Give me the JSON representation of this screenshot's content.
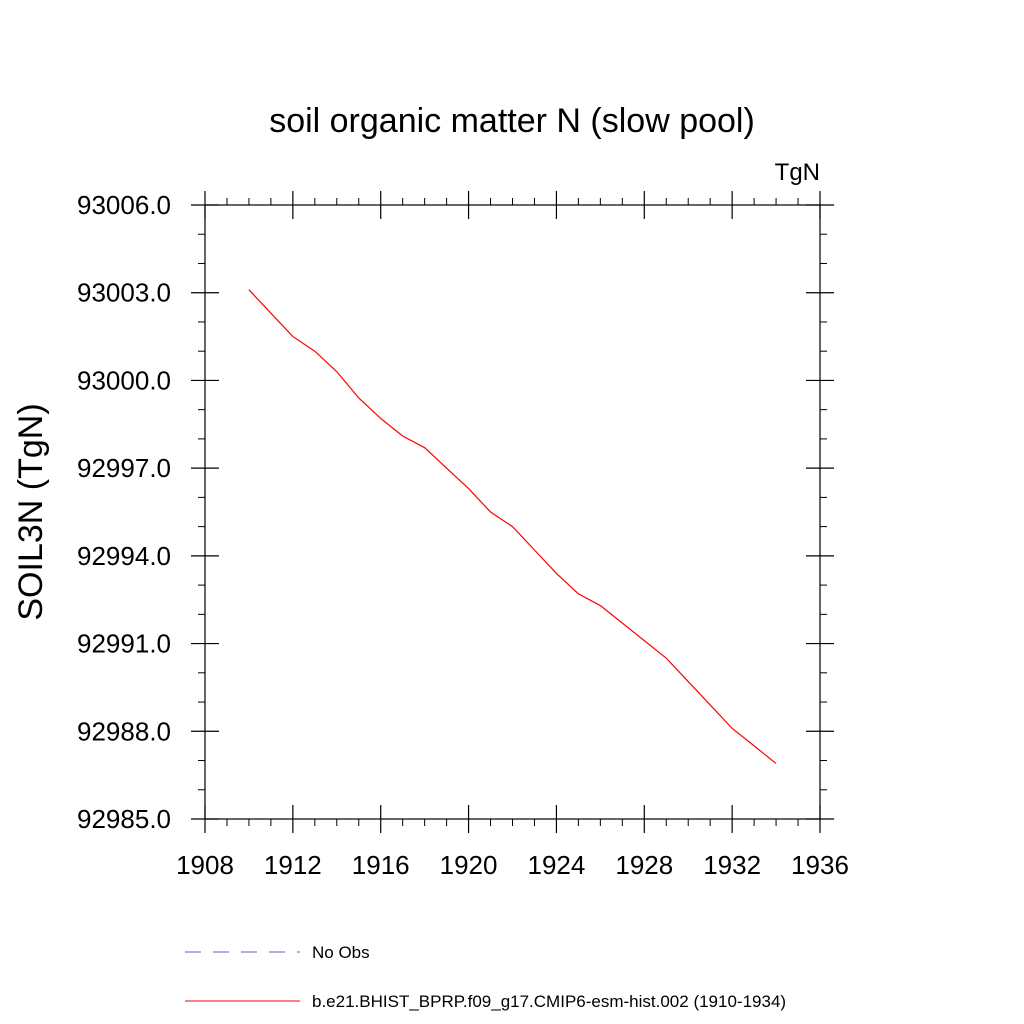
{
  "chart_data": {
    "type": "line",
    "title": "soil organic matter N (slow pool)",
    "units_label": "TgN",
    "ylabel": "SOIL3N  (TgN)",
    "xlabel": "",
    "xlim": [
      1908,
      1936
    ],
    "ylim": [
      92985.0,
      93006.0
    ],
    "x_ticks": [
      1908,
      1912,
      1916,
      1920,
      1924,
      1928,
      1932,
      1936
    ],
    "x_tick_labels": [
      "1908",
      "1912",
      "1916",
      "1920",
      "1924",
      "1928",
      "1932",
      "1936"
    ],
    "y_ticks": [
      92985.0,
      92988.0,
      92991.0,
      92994.0,
      92997.0,
      93000.0,
      93003.0,
      93006.0
    ],
    "y_tick_labels": [
      "92985.0",
      "92988.0",
      "92991.0",
      "92994.0",
      "92997.0",
      "93000.0",
      "93003.0",
      "93006.0"
    ],
    "grid": false,
    "legend_placement": "bottom",
    "series": [
      {
        "name": "b.e21.BHIST_BPRP.f09_g17.CMIP6-esm-hist.002 (1910-1934)",
        "color": "#ff0000",
        "dash": "solid",
        "x": [
          1910,
          1911,
          1912,
          1913,
          1914,
          1915,
          1916,
          1917,
          1918,
          1919,
          1920,
          1921,
          1922,
          1923,
          1924,
          1925,
          1926,
          1927,
          1928,
          1929,
          1930,
          1931,
          1932,
          1933,
          1934
        ],
        "y": [
          93003.1,
          93002.3,
          93001.5,
          93001.0,
          93000.3,
          92999.4,
          92998.7,
          92998.1,
          92997.7,
          92997.0,
          92996.3,
          92995.5,
          92995.0,
          92994.2,
          92993.4,
          92992.7,
          92992.3,
          92991.7,
          92991.1,
          92990.5,
          92989.7,
          92988.9,
          92988.1,
          92987.5,
          92986.9
        ]
      }
    ],
    "legend": [
      {
        "label": "No Obs",
        "color": "#6a5acd",
        "dash": "dashed"
      },
      {
        "label": "b.e21.BHIST_BPRP.f09_g17.CMIP6-esm-hist.002 (1910-1934)",
        "color": "#ff0000",
        "dash": "solid"
      }
    ]
  }
}
